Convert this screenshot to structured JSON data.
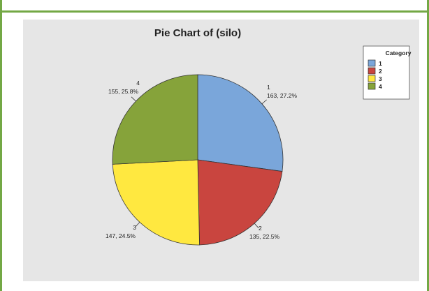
{
  "chart_data": {
    "type": "pie",
    "title": "Pie Chart of (silo)",
    "legend": {
      "title": "Category",
      "placement": "top-right"
    },
    "slices": [
      {
        "category": "1",
        "value": 163,
        "percent": "27.2%",
        "label": "163, 27.2%",
        "color": "#7aa6da"
      },
      {
        "category": "2",
        "value": 135,
        "percent": "22.5%",
        "label": "135, 22.5%",
        "color": "#c9453f"
      },
      {
        "category": "3",
        "value": 147,
        "percent": "24.5%",
        "label": "147, 24.5%",
        "color": "#ffe840"
      },
      {
        "category": "4",
        "value": 155,
        "percent": "25.8%",
        "label": "155, 25.8%",
        "color": "#86a33a"
      }
    ]
  }
}
